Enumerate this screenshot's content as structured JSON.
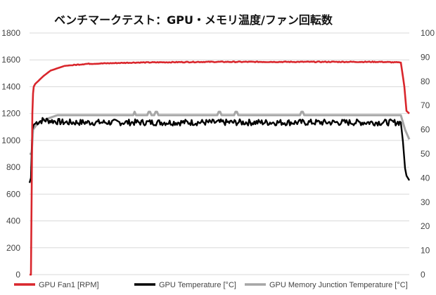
{
  "chart_data": {
    "type": "line",
    "title": "ベンチマークテスト：GPU・メモリ温度/ファン回転数",
    "y_left": {
      "ticks": [
        "0",
        "200",
        "400",
        "600",
        "800",
        "1000",
        "1200",
        "1400",
        "1600",
        "1800"
      ],
      "ylim": [
        0,
        1800
      ]
    },
    "y_right": {
      "ticks": [
        "0",
        "10",
        "20",
        "30",
        "40",
        "50",
        "60",
        "70",
        "80",
        "90",
        "100"
      ],
      "ylim": [
        0,
        100
      ]
    },
    "grid": true,
    "legend_position": "bottom",
    "series": [
      {
        "name": "GPU Fan1 [RPM]",
        "axis": "left",
        "color": "#d9262c",
        "x": [
          0,
          2,
          3,
          4,
          5,
          6,
          8,
          12,
          20,
          30,
          50,
          80,
          150,
          250,
          400,
          500,
          530,
          535,
          538,
          542
        ],
        "values": [
          0,
          0,
          600,
          1200,
          1350,
          1400,
          1420,
          1440,
          1480,
          1520,
          1555,
          1570,
          1580,
          1585,
          1585,
          1585,
          1580,
          1400,
          1220,
          1200
        ]
      },
      {
        "name": "GPU Temperature [°C]",
        "axis": "right",
        "color": "#000000",
        "x": [
          0,
          1,
          2,
          3,
          4,
          6,
          10,
          20,
          50,
          100,
          200,
          300,
          400,
          500,
          530,
          533,
          536,
          538,
          542
        ],
        "values": [
          38,
          39,
          40,
          50,
          60,
          62,
          63,
          64,
          63,
          63,
          63,
          63,
          63,
          63,
          63,
          55,
          44,
          41,
          39
        ]
      },
      {
        "name": "GPU Memory Junction Temperature [°C]",
        "axis": "right",
        "color": "#a6a6a6",
        "x": [
          0,
          3,
          5,
          10,
          20,
          40,
          100,
          200,
          300,
          400,
          500,
          530,
          536,
          542
        ],
        "values": [
          50,
          50,
          60,
          62,
          64,
          66,
          66,
          66,
          66,
          66,
          66,
          66,
          60,
          56
        ]
      }
    ]
  }
}
